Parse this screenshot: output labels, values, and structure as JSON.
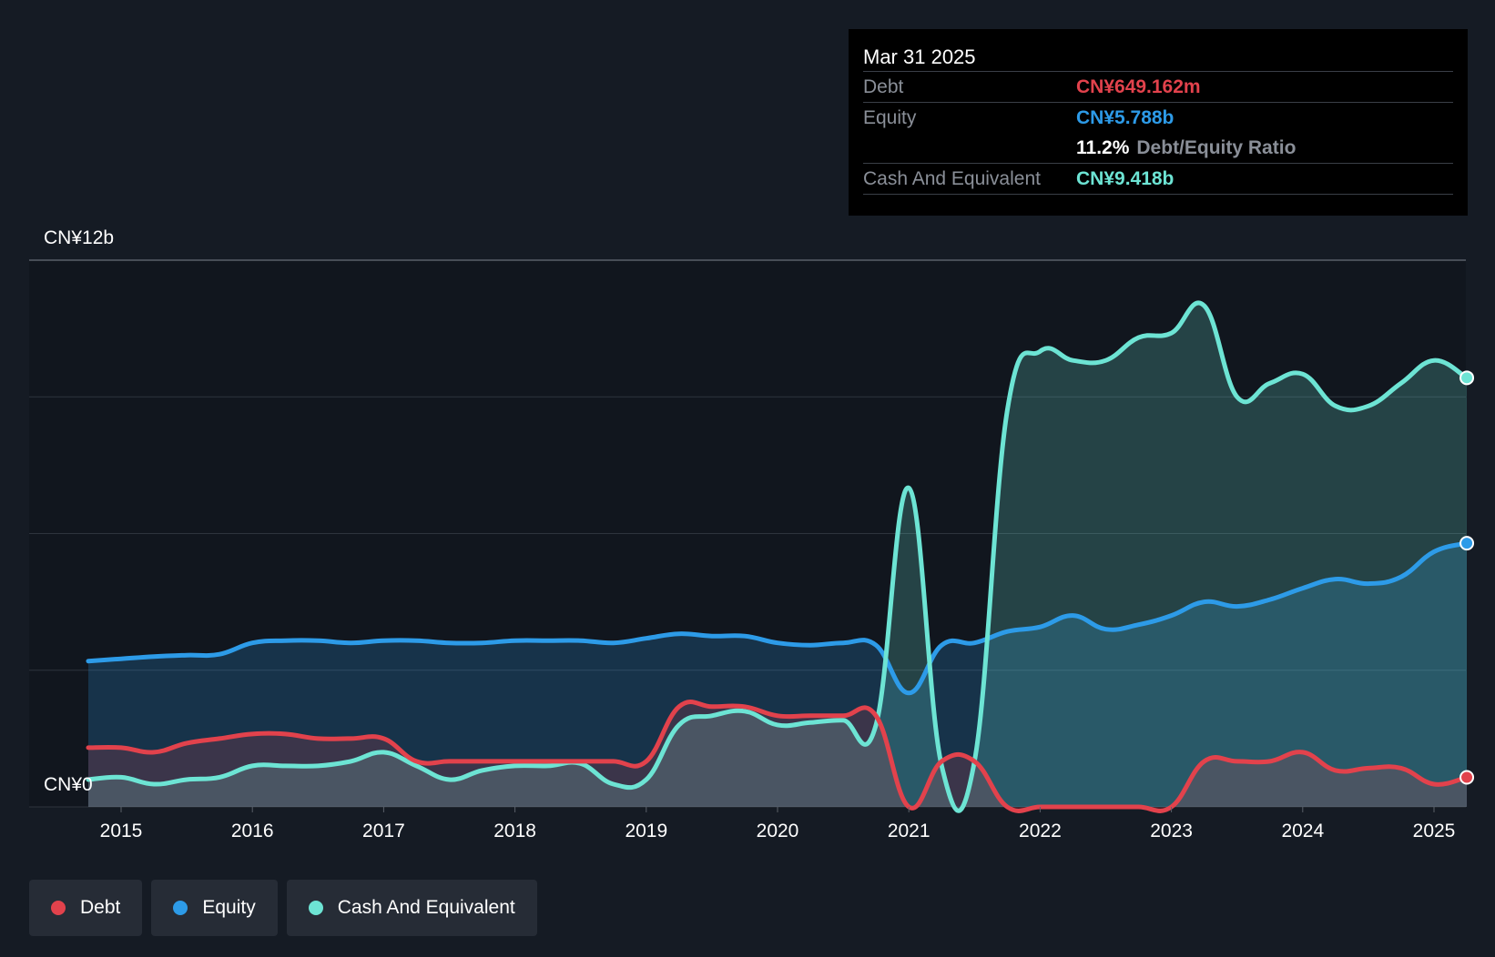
{
  "chart_data": {
    "type": "area",
    "x": [
      2014.75,
      2015.0,
      2015.25,
      2015.5,
      2015.75,
      2016.0,
      2016.25,
      2016.5,
      2016.75,
      2017.0,
      2017.25,
      2017.5,
      2017.75,
      2018.0,
      2018.25,
      2018.5,
      2018.75,
      2019.0,
      2019.25,
      2019.5,
      2019.75,
      2020.0,
      2020.25,
      2020.5,
      2020.75,
      2021.0,
      2021.25,
      2021.5,
      2021.75,
      2022.0,
      2022.25,
      2022.5,
      2022.75,
      2023.0,
      2023.25,
      2023.5,
      2023.75,
      2024.0,
      2024.25,
      2024.5,
      2024.75,
      2025.0,
      2025.25
    ],
    "series": [
      {
        "name": "Debt",
        "color": "#e2424c",
        "values": [
          1.3,
          1.3,
          1.2,
          1.4,
          1.5,
          1.6,
          1.6,
          1.5,
          1.5,
          1.5,
          1.0,
          1.0,
          1.0,
          1.0,
          1.0,
          1.0,
          1.0,
          1.0,
          2.2,
          2.2,
          2.2,
          2.0,
          2.0,
          2.0,
          2.0,
          0.0,
          1.0,
          1.0,
          0.0,
          0.0,
          0.0,
          0.0,
          0.0,
          0.0,
          1.0,
          1.0,
          1.0,
          1.2,
          0.8,
          0.85,
          0.85,
          0.5,
          0.649
        ]
      },
      {
        "name": "Equity",
        "color": "#2d9be8",
        "values": [
          3.2,
          3.25,
          3.3,
          3.33,
          3.35,
          3.6,
          3.65,
          3.65,
          3.6,
          3.65,
          3.65,
          3.6,
          3.6,
          3.65,
          3.65,
          3.65,
          3.6,
          3.7,
          3.8,
          3.75,
          3.75,
          3.6,
          3.55,
          3.6,
          3.55,
          2.5,
          3.55,
          3.6,
          3.85,
          3.95,
          4.2,
          3.9,
          4.0,
          4.2,
          4.5,
          4.4,
          4.55,
          4.8,
          5.0,
          4.9,
          5.05,
          5.6,
          5.788
        ]
      },
      {
        "name": "Cash And Equivalent",
        "color": "#6de4d4",
        "values": [
          0.6,
          0.65,
          0.5,
          0.6,
          0.65,
          0.9,
          0.9,
          0.9,
          1.0,
          1.2,
          0.9,
          0.6,
          0.8,
          0.9,
          0.9,
          0.95,
          0.5,
          0.6,
          1.8,
          2.0,
          2.1,
          1.8,
          1.85,
          1.9,
          1.8,
          7.0,
          0.9,
          1.0,
          8.7,
          10.0,
          9.8,
          9.8,
          10.3,
          10.4,
          11.0,
          9.0,
          9.3,
          9.5,
          8.8,
          8.8,
          9.3,
          9.8,
          9.418
        ]
      }
    ],
    "xticks": [
      "2015",
      "2016",
      "2017",
      "2018",
      "2019",
      "2020",
      "2021",
      "2022",
      "2023",
      "2024",
      "2025"
    ],
    "ylim": [
      0,
      12
    ],
    "y_top_label": "CN¥12b",
    "y_bottom_label": "CN¥0",
    "grid": true,
    "legend_position": "bottom-left"
  },
  "tooltip": {
    "date": "Mar 31 2025",
    "debt_label": "Debt",
    "debt_value": "CN¥649.162m",
    "equity_label": "Equity",
    "equity_value": "CN¥5.788b",
    "ratio_pct": "11.2%",
    "ratio_label": "Debt/Equity Ratio",
    "cash_label": "Cash And Equivalent",
    "cash_value": "CN¥9.418b"
  },
  "legend": {
    "debt": "Debt",
    "equity": "Equity",
    "cash": "Cash And Equivalent"
  },
  "colors": {
    "debt": "#e2424c",
    "equity": "#2d9be8",
    "cash": "#6de4d4",
    "background": "#151b24"
  }
}
